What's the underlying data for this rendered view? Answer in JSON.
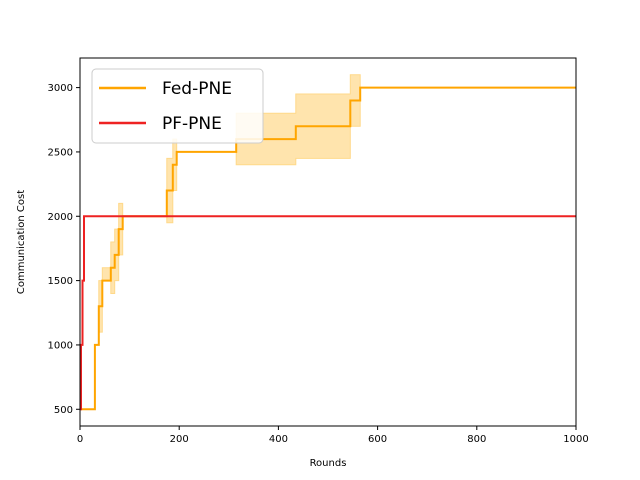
{
  "chart_data": {
    "type": "line",
    "title": "",
    "xlabel": "Rounds",
    "ylabel": "Communication Cost",
    "xlim": [
      0,
      1000
    ],
    "ylim": [
      370,
      3230
    ],
    "xticks": [
      0,
      200,
      400,
      600,
      800,
      1000
    ],
    "yticks": [
      500,
      1000,
      1500,
      2000,
      2500,
      3000
    ],
    "grid": false,
    "legend_position": "top-left",
    "series": [
      {
        "name": "Fed-PNE",
        "color": "#ffa500",
        "band_color": "#ffd98a",
        "step": true,
        "x": [
          0,
          30,
          38,
          45,
          62,
          70,
          78,
          86,
          92,
          175,
          187,
          195,
          200,
          315,
          340,
          435,
          545,
          565,
          1000
        ],
        "y": [
          500,
          1000,
          1300,
          1500,
          1600,
          1700,
          1900,
          2000,
          2000,
          2200,
          2400,
          2500,
          2500,
          2600,
          2600,
          2700,
          2900,
          3000,
          3000
        ],
        "upper": [
          500,
          1000,
          1500,
          1600,
          1800,
          1900,
          2100,
          2000,
          2000,
          2450,
          2600,
          2500,
          2500,
          2800,
          2800,
          2950,
          3100,
          3000,
          3000
        ],
        "lower": [
          500,
          1000,
          1100,
          1500,
          1400,
          1500,
          1700,
          2000,
          2000,
          1950,
          2200,
          2500,
          2500,
          2400,
          2400,
          2450,
          2700,
          3000,
          3000
        ]
      },
      {
        "name": "PF-PNE",
        "color": "#ee2222",
        "step": true,
        "x": [
          0,
          2,
          5,
          8,
          1000
        ],
        "y": [
          500,
          1000,
          1500,
          2000,
          2000
        ]
      }
    ]
  }
}
